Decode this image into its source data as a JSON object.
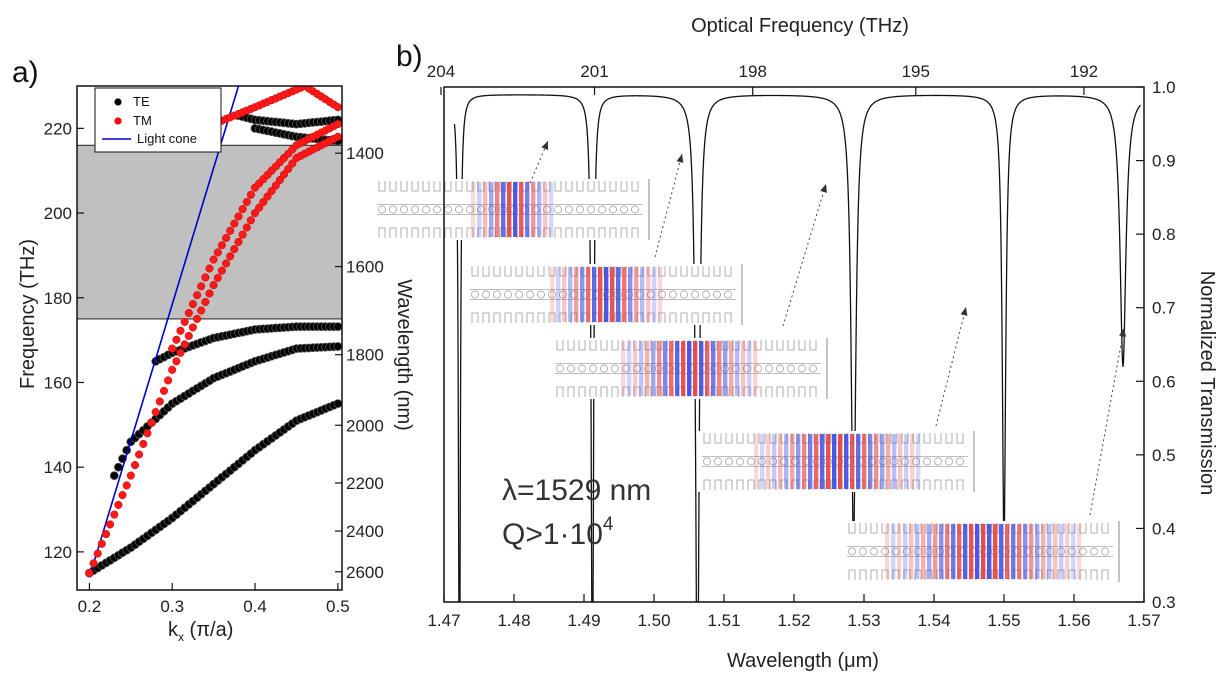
{
  "labels": {
    "panel_a": "a)",
    "panel_b": "b)"
  },
  "chart_data": [
    {
      "panel": "a)",
      "type": "scatter",
      "xlabel": "k",
      "xlabel_sub": "x",
      "xlabel_tail": " (π/a)",
      "ylabel": "Frequency (THz)",
      "y2label": "Wavelength (nm)",
      "xlim": [
        0.185,
        0.505
      ],
      "ylim": [
        111,
        230
      ],
      "xticks": [
        0.2,
        0.3,
        0.4,
        0.5
      ],
      "xtick_labels": [
        "0.2",
        "0.3",
        "0.4",
        "0.5"
      ],
      "yticks": [
        120,
        140,
        160,
        180,
        200,
        220
      ],
      "ytick_labels": [
        "120",
        "140",
        "160",
        "180",
        "200",
        "220"
      ],
      "y2ticks": [
        1400,
        1600,
        1800,
        2000,
        2200,
        2400,
        2600
      ],
      "y2tick_labels": [
        "1400",
        "1600",
        "1800",
        "2000",
        "2200",
        "2400",
        "2600"
      ],
      "bandgap_thz": [
        175,
        216
      ],
      "legend": [
        "TE",
        "TM",
        "Light cone"
      ],
      "legend_position": "top-left",
      "colors": {
        "TE": "#000000",
        "TM": "#ff0000",
        "Light cone": "#0000cc",
        "bandgap": "#c0c0c0"
      },
      "series": [
        {
          "name": "TE",
          "kind": "markers",
          "bands": [
            {
              "x": [
                0.2,
                0.25,
                0.3,
                0.35,
                0.4,
                0.45,
                0.5
              ],
              "y": [
                115,
                121,
                128,
                136,
                144,
                151,
                155
              ]
            },
            {
              "x": [
                0.23,
                0.25,
                0.3,
                0.35,
                0.4,
                0.45,
                0.5
              ],
              "y": [
                138,
                146,
                155,
                161,
                165,
                168,
                168.5
              ]
            },
            {
              "x": [
                0.28,
                0.3,
                0.35,
                0.4,
                0.45,
                0.5
              ],
              "y": [
                165,
                167,
                170.5,
                172.5,
                173.2,
                173.2
              ]
            },
            {
              "x": [
                0.38,
                0.4,
                0.45,
                0.5
              ],
              "y": [
                223,
                222,
                221,
                222
              ]
            },
            {
              "x": [
                0.4,
                0.45,
                0.5
              ],
              "y": [
                220,
                218,
                217
              ]
            }
          ]
        },
        {
          "name": "TM",
          "kind": "markers",
          "bands": [
            {
              "x": [
                0.2,
                0.25,
                0.3,
                0.35,
                0.4,
                0.45,
                0.5
              ],
              "y": [
                115,
                138,
                163,
                183,
                200,
                213,
                218
              ]
            },
            {
              "x": [
                0.3,
                0.35,
                0.4,
                0.45,
                0.5
              ],
              "y": [
                168,
                189,
                206,
                216,
                221
              ]
            },
            {
              "x": [
                0.35,
                0.4,
                0.46,
                0.5
              ],
              "y": [
                221,
                225,
                230,
                225
              ]
            }
          ]
        },
        {
          "name": "Light cone",
          "kind": "line",
          "x": [
            0.2,
            0.38
          ],
          "y": [
            114,
            230
          ]
        }
      ]
    },
    {
      "panel": "b)",
      "type": "line",
      "xlabel": "Wavelength (μm)",
      "x2label": "Optical Frequency (THz)",
      "y2label": "Normalized Transmission",
      "xlim": [
        1.47,
        1.57
      ],
      "ylim": [
        0.3,
        1.0
      ],
      "xticks": [
        1.47,
        1.48,
        1.49,
        1.5,
        1.51,
        1.52,
        1.53,
        1.54,
        1.55,
        1.56,
        1.57
      ],
      "xtick_labels": [
        "1.47",
        "1.48",
        "1.49",
        "1.50",
        "1.51",
        "1.52",
        "1.53",
        "1.54",
        "1.55",
        "1.56",
        "1.57"
      ],
      "x2ticks_thz": [
        204,
        201,
        198,
        195,
        192
      ],
      "x2tick_labels": [
        "204",
        "201",
        "198",
        "195",
        "192"
      ],
      "y2ticks": [
        0.3,
        0.4,
        0.5,
        0.6,
        0.7,
        0.8,
        0.9,
        1.0
      ],
      "y2tick_labels": [
        "0.3",
        "0.4",
        "0.5",
        "0.6",
        "0.7",
        "0.8",
        "0.9",
        "1.0"
      ],
      "baseline": 0.99,
      "resonances": [
        {
          "lambda_um": 1.4722,
          "depth": 0.915,
          "width_um": 0.00015
        },
        {
          "lambda_um": 1.4912,
          "depth": 0.91,
          "width_um": 0.00018
        },
        {
          "lambda_um": 1.5062,
          "depth": 0.86,
          "width_um": 0.0003
        },
        {
          "lambda_um": 1.5285,
          "depth": 0.61,
          "width_um": 0.0004
        },
        {
          "lambda_um": 1.55,
          "depth": 0.61,
          "width_um": 0.0003
        },
        {
          "lambda_um": 1.567,
          "depth": 0.37,
          "width_um": 0.0005
        }
      ],
      "annotation_lines": [
        "λ=1529 nm",
        "Q>1·10"
      ],
      "annotation_sup": "4",
      "mode_images": 5
    }
  ]
}
